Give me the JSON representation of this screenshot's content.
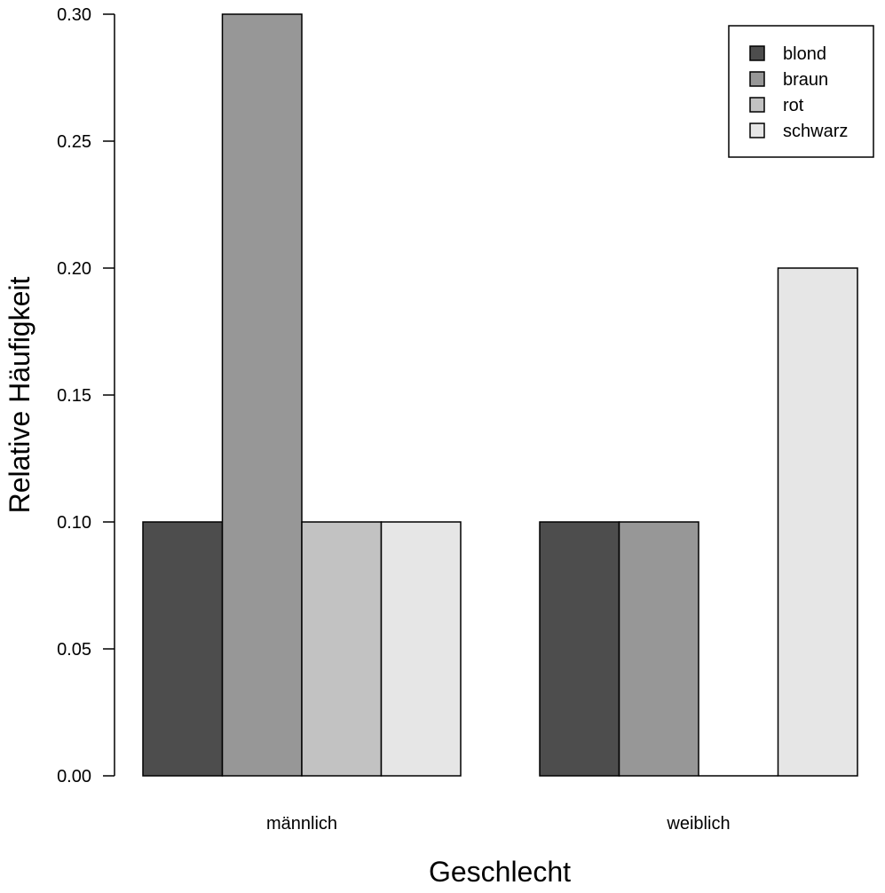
{
  "chart_data": {
    "type": "bar",
    "mode": "grouped",
    "categories": [
      "männlich",
      "weiblich"
    ],
    "series": [
      {
        "name": "blond",
        "color": "#4d4d4d",
        "values": [
          0.1,
          0.1
        ]
      },
      {
        "name": "braun",
        "color": "#979797",
        "values": [
          0.3,
          0.1
        ]
      },
      {
        "name": "rot",
        "color": "#c2c2c2",
        "values": [
          0.1,
          0.0
        ]
      },
      {
        "name": "schwarz",
        "color": "#e6e6e6",
        "values": [
          0.1,
          0.2
        ]
      }
    ],
    "title": "",
    "xlabel": "Geschlecht",
    "ylabel": "Relative Häufigkeit",
    "ylim": [
      0,
      0.3
    ],
    "yticks": [
      "0.00",
      "0.05",
      "0.10",
      "0.15",
      "0.20",
      "0.25",
      "0.30"
    ],
    "grid": false,
    "legend_position": "top-right"
  }
}
